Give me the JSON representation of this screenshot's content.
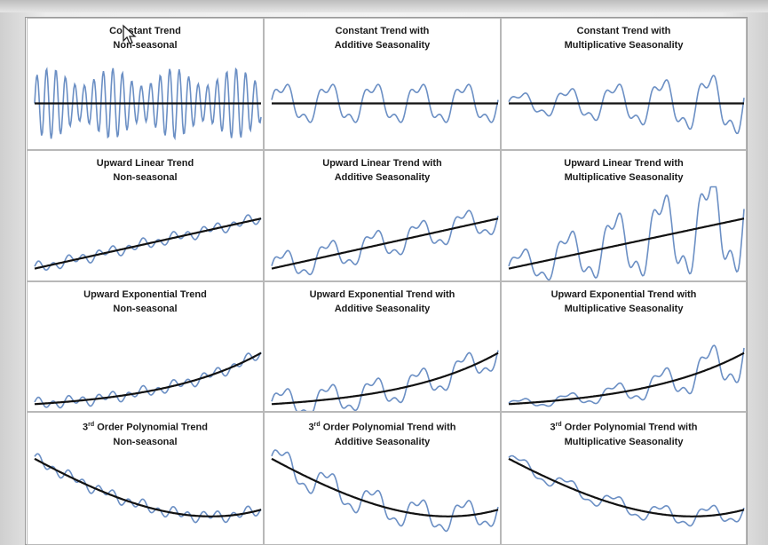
{
  "colors": {
    "series": "#6b8fc4",
    "trend": "#111111",
    "panel_border": "#b8b8b8"
  },
  "chart_data": [
    {
      "type": "line",
      "title_line1": "Constant Trend",
      "title_line2": "Non-seasonal",
      "trend": "constant",
      "seasonality": "none",
      "pattern": "rapid-noise"
    },
    {
      "type": "line",
      "title_line1": "Constant Trend with",
      "title_line2": "Additive Seasonality",
      "trend": "constant",
      "seasonality": "additive"
    },
    {
      "type": "line",
      "title_line1": "Constant Trend with",
      "title_line2": "Multiplicative Seasonality",
      "trend": "constant",
      "seasonality": "multiplicative"
    },
    {
      "type": "line",
      "title_line1": "Upward Linear Trend",
      "title_line2": "Non-seasonal",
      "trend": "linear",
      "seasonality": "none"
    },
    {
      "type": "line",
      "title_line1": "Upward Linear Trend with",
      "title_line2": "Additive Seasonality",
      "trend": "linear",
      "seasonality": "additive"
    },
    {
      "type": "line",
      "title_line1": "Upward Linear Trend with",
      "title_line2": "Multiplicative Seasonality",
      "trend": "linear",
      "seasonality": "multiplicative"
    },
    {
      "type": "line",
      "title_line1": "Upward Exponential Trend",
      "title_line2": "Non-seasonal",
      "trend": "exponential",
      "seasonality": "none"
    },
    {
      "type": "line",
      "title_line1": "Upward Exponential Trend with",
      "title_line2": "Additive Seasonality",
      "trend": "exponential",
      "seasonality": "additive"
    },
    {
      "type": "line",
      "title_line1": "Upward Exponential Trend with",
      "title_line2": "Multiplicative Seasonality",
      "trend": "exponential",
      "seasonality": "multiplicative"
    },
    {
      "type": "line",
      "title_line1": "3rd Order Polynomial Trend",
      "title_line2": "Non-seasonal",
      "trend": "polynomial",
      "seasonality": "none"
    },
    {
      "type": "line",
      "title_line1": "3rd Order Polynomial Trend with",
      "title_line2": "Additive Seasonality",
      "trend": "polynomial",
      "seasonality": "additive"
    },
    {
      "type": "line",
      "title_line1": "3rd Order Polynomial Trend with",
      "title_line2": "Multiplicative Seasonality",
      "trend": "polynomial",
      "seasonality": "multiplicative"
    }
  ]
}
